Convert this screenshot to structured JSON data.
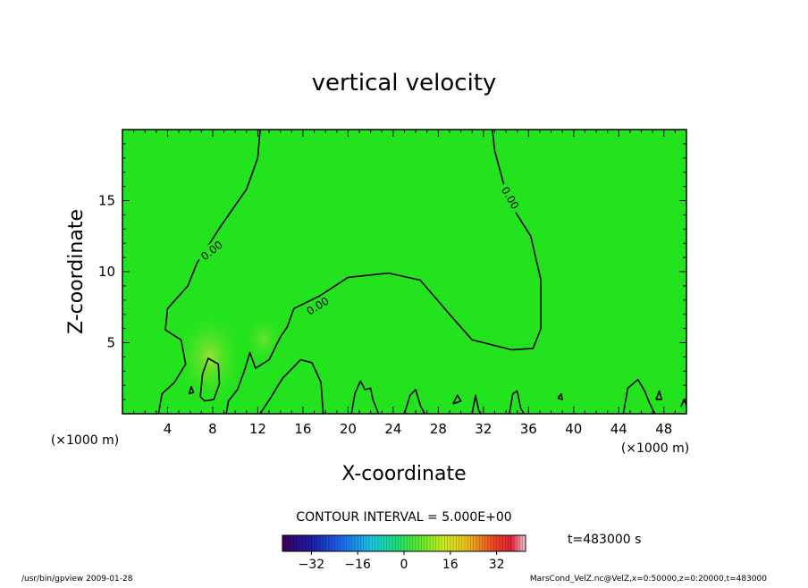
{
  "chart_data": {
    "type": "heatmap",
    "title": "vertical velocity",
    "xlabel": "X-coordinate",
    "ylabel": "Z-coordinate",
    "x_unit": "(×1000 m)",
    "xlim": [
      0,
      50
    ],
    "ylim": [
      0,
      20
    ],
    "x_ticks": [
      4,
      8,
      12,
      16,
      20,
      24,
      28,
      32,
      36,
      40,
      44,
      48
    ],
    "y_ticks": [
      5,
      10,
      15
    ],
    "x_tick_labels": [
      "4",
      "8",
      "12",
      "16",
      "20",
      "24",
      "28",
      "32",
      "36",
      "40",
      "44",
      "48"
    ],
    "y_tick_labels": [
      "5",
      "10",
      "15"
    ],
    "field_color": "#22e31d",
    "contour_label": "0.00",
    "contour_interval_text": "CONTOUR INTERVAL = 5.000E+00",
    "time_text": "t=483000 s",
    "colorbar": {
      "range": [
        -42,
        42
      ],
      "ticks": [
        -32,
        -16,
        0,
        16,
        32
      ],
      "tick_labels": [
        "−32",
        "−16",
        "0",
        "16",
        "32"
      ]
    },
    "contours": [
      [
        [
          12.2,
          20
        ],
        [
          12.0,
          18
        ],
        [
          11.0,
          15.8
        ],
        [
          8.8,
          13.3
        ],
        [
          6.6,
          10.6
        ],
        [
          5.8,
          9.0
        ],
        [
          4.0,
          7.4
        ],
        [
          3.8,
          5.9
        ],
        [
          5.2,
          5.2
        ],
        [
          5.6,
          3.5
        ],
        [
          4.6,
          2.2
        ],
        [
          3.5,
          1.4
        ],
        [
          3.2,
          0
        ]
      ],
      [
        [
          32.8,
          20
        ],
        [
          33.0,
          18.5
        ],
        [
          34.2,
          15.0
        ],
        [
          36.2,
          12.5
        ],
        [
          37.1,
          9.4
        ],
        [
          37.1,
          6.0
        ],
        [
          36.4,
          4.6
        ],
        [
          34.5,
          4.5
        ],
        [
          31.0,
          5.2
        ],
        [
          29.0,
          7.0
        ],
        [
          26.4,
          9.4
        ],
        [
          23.6,
          9.9
        ],
        [
          20.0,
          9.6
        ],
        [
          17.5,
          8.3
        ],
        [
          15.2,
          7.4
        ],
        [
          14.6,
          6.1
        ],
        [
          14.0,
          5.4
        ],
        [
          13.0,
          3.8
        ],
        [
          11.8,
          3.2
        ],
        [
          11.3,
          4.3
        ],
        [
          10.8,
          3.0
        ],
        [
          10.2,
          1.7
        ],
        [
          9.4,
          0.9
        ],
        [
          9.2,
          0
        ]
      ],
      [
        [
          17.8,
          0
        ],
        [
          17.6,
          2.2
        ],
        [
          16.8,
          3.6
        ],
        [
          15.8,
          3.8
        ],
        [
          14.2,
          2.5
        ],
        [
          13.8,
          2.0
        ],
        [
          13.2,
          1.2
        ],
        [
          12.2,
          0
        ]
      ],
      [
        [
          6.9,
          1.2
        ],
        [
          7.1,
          2.8
        ],
        [
          7.6,
          3.9
        ],
        [
          8.5,
          3.5
        ],
        [
          8.6,
          2.1
        ],
        [
          8.1,
          1.0
        ],
        [
          7.3,
          0.9
        ],
        [
          6.9,
          1.2
        ]
      ],
      [
        [
          5.9,
          1.4
        ],
        [
          6.1,
          1.9
        ],
        [
          6.3,
          1.5
        ],
        [
          5.9,
          1.4
        ]
      ],
      [
        [
          20.3,
          0
        ],
        [
          20.6,
          1.4
        ],
        [
          21.1,
          2.3
        ],
        [
          21.5,
          1.7
        ],
        [
          22.0,
          1.8
        ],
        [
          22.2,
          1.0
        ],
        [
          22.7,
          0
        ]
      ],
      [
        [
          25.0,
          0
        ],
        [
          25.5,
          1.3
        ],
        [
          26.0,
          1.7
        ],
        [
          26.4,
          0.6
        ],
        [
          26.8,
          0
        ]
      ],
      [
        [
          29.3,
          0.7
        ],
        [
          29.7,
          1.3
        ],
        [
          30.0,
          0.9
        ],
        [
          29.3,
          0.7
        ]
      ],
      [
        [
          31.0,
          0
        ],
        [
          31.3,
          1.3
        ],
        [
          31.6,
          0.2
        ],
        [
          31.8,
          0
        ]
      ],
      [
        [
          34.3,
          0
        ],
        [
          34.6,
          1.4
        ],
        [
          35.0,
          1.6
        ],
        [
          35.3,
          0.4
        ],
        [
          35.6,
          0
        ]
      ],
      [
        [
          44.4,
          0
        ],
        [
          44.8,
          1.8
        ],
        [
          45.7,
          2.4
        ],
        [
          46.3,
          1.6
        ],
        [
          46.7,
          0.8
        ],
        [
          47.2,
          0
        ]
      ],
      [
        [
          38.6,
          1.1
        ],
        [
          38.9,
          1.4
        ],
        [
          39.0,
          1.0
        ],
        [
          38.6,
          1.1
        ]
      ],
      [
        [
          47.3,
          1.0
        ],
        [
          47.6,
          1.6
        ],
        [
          47.8,
          1.0
        ],
        [
          47.3,
          1.0
        ]
      ],
      [
        [
          49.5,
          0.5
        ],
        [
          49.8,
          1.0
        ],
        [
          50,
          0.6
        ]
      ]
    ],
    "contour_label_positions": [
      [
        7.9,
        11.5
      ],
      [
        17.3,
        7.6
      ],
      [
        34.4,
        15.2
      ]
    ]
  },
  "footer": {
    "left": "/usr/bin/gpview  2009-01-28",
    "right": "MarsCond_VelZ.nc@VelZ,x=0:50000,z=0:20000,t=483000"
  }
}
